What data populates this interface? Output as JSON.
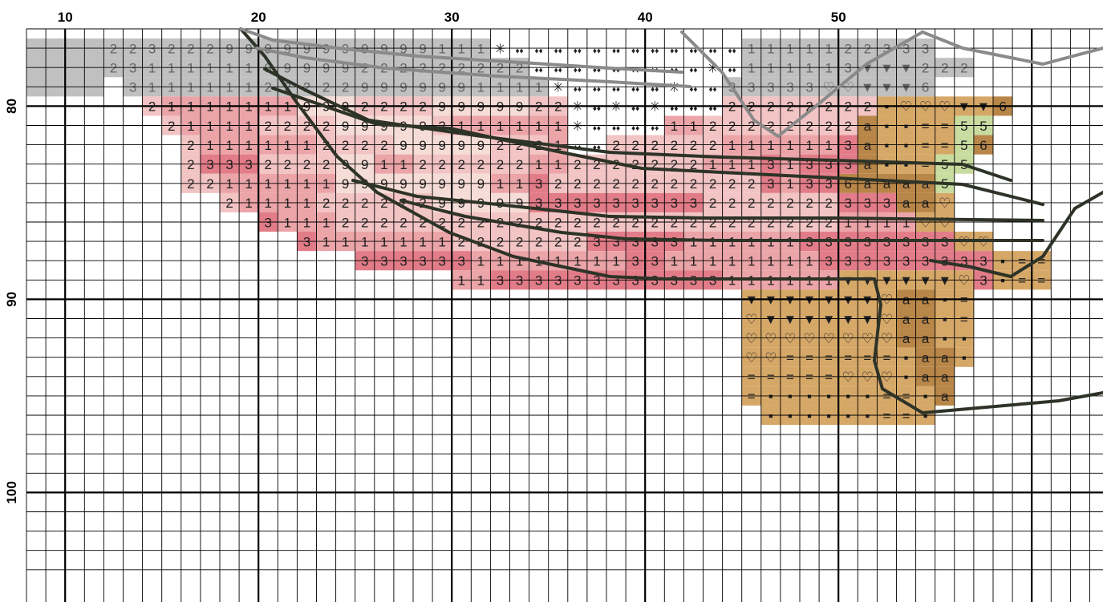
{
  "title": "",
  "col_labels": [
    "10",
    "20",
    "30",
    "40",
    "50"
  ],
  "row_labels": [
    "80",
    "90",
    "100"
  ],
  "grid": {
    "first_col": 0,
    "first_row": 76,
    "row_start": 76.5,
    "cols_drawn": 56,
    "rows_drawn": 26,
    "major_every": 10
  },
  "colors": {
    "gray_shade": "#c0c0c0",
    "gray_outline": "#8a8a8a",
    "pink_light": "#f2c4c4",
    "pink_pale": "#f6dcd6",
    "pink_mid": "#eba4a8",
    "pink_deep": "#e27c88",
    "rose_dark": "#d85c70",
    "tan": "#d6a868",
    "tan_dark": "#b88648",
    "green_light": "#c8dca0",
    "white": "#ffffff",
    "outline": "#2d3327",
    "grid_line": "#000000"
  },
  "legend_symbols": [
    "1",
    "2",
    "3",
    "9",
    "5",
    "6",
    "a",
    "=",
    "✳",
    "♦♦",
    "♡",
    "▼",
    "▪"
  ],
  "stitch_rows": [
    {
      "row": 77,
      "start": 12,
      "cells": [
        "2",
        "2",
        "3",
        "2",
        "2",
        "2",
        "9",
        "9",
        "9",
        "9",
        "9",
        "9",
        "9",
        "9",
        "9",
        "9",
        "9",
        "1",
        "1",
        "1",
        "✳",
        "♦♦",
        "♦♦",
        "♦♦",
        "♦♦",
        "♦♦",
        "♦♦",
        "♦♦",
        "♦♦",
        "♦♦",
        "♦♦",
        "♦♦",
        "♦♦",
        "1",
        "1",
        "1",
        "1",
        "1",
        "2",
        "2",
        "3",
        "3",
        "3"
      ],
      "tone": "gray"
    },
    {
      "row": 78,
      "start": 12,
      "cells": [
        "2",
        "3",
        "1",
        "1",
        "1",
        "1",
        "1",
        "1",
        "9",
        "9",
        "9",
        "9",
        "9",
        "2",
        "2",
        "2",
        "2",
        "2",
        "2",
        "2",
        "2",
        "2",
        "♦♦",
        "♦♦",
        "♦♦",
        "♦♦",
        "♦♦",
        "♦♦",
        "♦♦",
        "♦♦",
        "♦♦",
        "✳",
        "♦♦",
        "1",
        "1",
        "1",
        "1",
        "1",
        "3",
        "▼",
        "▼",
        "▼",
        "2",
        "2",
        "2"
      ],
      "tone": "gray"
    },
    {
      "row": 79,
      "start": 13,
      "cells": [
        "3",
        "1",
        "1",
        "1",
        "1",
        "1",
        "1",
        "2",
        "2",
        "2",
        "2",
        "2",
        "9",
        "9",
        "9",
        "9",
        "9",
        "9",
        "1",
        "1",
        "1",
        "1",
        "✳",
        "♦♦",
        "♦♦",
        "♦♦",
        "♦♦",
        "♦♦",
        "✳",
        "♦♦",
        "♦♦",
        "3",
        "3",
        "3",
        "3",
        "3",
        "♡",
        "♡",
        "▼",
        "▼",
        "▼",
        "6"
      ],
      "tone": "gray"
    },
    {
      "row": 80,
      "start": 14,
      "cells": [
        "2",
        "1",
        "1",
        "1",
        "1",
        "1",
        "1",
        "1",
        "9",
        "9",
        "9",
        "2",
        "2",
        "2",
        "2",
        "9",
        "9",
        "9",
        "9",
        "9",
        "2",
        "2",
        "✳",
        "♦♦",
        "✳",
        "♦♦",
        "✳",
        "♦♦",
        "♦♦",
        "♦♦",
        "2",
        "2",
        "2",
        "2",
        "2",
        "2",
        "2",
        "2",
        "▪",
        "♡",
        "♡",
        "♡",
        "▼",
        "▼",
        "6"
      ],
      "tone": "pink"
    },
    {
      "row": 81,
      "start": 15,
      "cells": [
        "2",
        "1",
        "1",
        "1",
        "1",
        "2",
        "2",
        "2",
        "2",
        "9",
        "9",
        "9",
        "9",
        "9",
        "2",
        "1",
        "1",
        "1",
        "1",
        "1",
        "1",
        "✳",
        "♦♦",
        "♦♦",
        "♦♦",
        "♦♦",
        "1",
        "1",
        "2",
        "2",
        "2",
        "2",
        "2",
        "2",
        "2",
        "2",
        "a",
        "▪",
        "▪",
        "=",
        "=",
        "5",
        "5"
      ],
      "tone": "pink"
    },
    {
      "row": 82,
      "start": 16,
      "cells": [
        "2",
        "1",
        "1",
        "1",
        "1",
        "1",
        "1",
        "2",
        "2",
        "2",
        "2",
        "9",
        "9",
        "9",
        "9",
        "9",
        "2",
        "2",
        "2",
        "1",
        "♦♦",
        "♦♦",
        "2",
        "2",
        "2",
        "2",
        "2",
        "2",
        "1",
        "1",
        "1",
        "1",
        "1",
        "1",
        "3",
        "a",
        "▪",
        "▪",
        "=",
        "=",
        "5",
        "6"
      ],
      "tone": "pink"
    },
    {
      "row": 83,
      "start": 16,
      "cells": [
        "2",
        "3",
        "3",
        "3",
        "2",
        "2",
        "2",
        "2",
        "9",
        "9",
        "1",
        "1",
        "2",
        "2",
        "2",
        "2",
        "2",
        "2",
        "1",
        "1",
        "2",
        "2",
        "2",
        "2",
        "2",
        "2",
        "2",
        "1",
        "1",
        "1",
        "3",
        "1",
        "3",
        "3",
        "3",
        "a",
        "▪",
        "▪",
        "=",
        "5",
        "5"
      ],
      "tone": "pink"
    },
    {
      "row": 84,
      "start": 16,
      "cells": [
        "2",
        "2",
        "1",
        "1",
        "1",
        "1",
        "1",
        "1",
        "9",
        "9",
        "9",
        "9",
        "9",
        "9",
        "9",
        "9",
        "1",
        "1",
        "3",
        "2",
        "2",
        "2",
        "2",
        "2",
        "2",
        "2",
        "2",
        "2",
        "2",
        "2",
        "3",
        "1",
        "3",
        "3",
        "6",
        "a",
        "a",
        "a",
        "a",
        "5"
      ],
      "tone": "pink"
    },
    {
      "row": 85,
      "start": 18,
      "cells": [
        "2",
        "1",
        "1",
        "1",
        "1",
        "2",
        "2",
        "2",
        "2",
        "2",
        "2",
        "9",
        "9",
        "9",
        "9",
        "9",
        "3",
        "3",
        "3",
        "3",
        "3",
        "3",
        "3",
        "3",
        "3",
        "2",
        "2",
        "2",
        "2",
        "2",
        "2",
        "2",
        "3",
        "3",
        "3",
        "a",
        "a",
        "♡"
      ],
      "tone": "pink"
    },
    {
      "row": 86,
      "start": 20,
      "cells": [
        "3",
        "1",
        "1",
        "1",
        "2",
        "2",
        "2",
        "2",
        "2",
        "2",
        "2",
        "2",
        "2",
        "2",
        "2",
        "2",
        "2",
        "2",
        "2",
        "2",
        "2",
        "2",
        "2",
        "2",
        "2",
        "2",
        "2",
        "2",
        "2",
        "2",
        "1",
        "1",
        "1",
        "1",
        "♡",
        "♡"
      ],
      "tone": "pink"
    },
    {
      "row": 87,
      "start": 22,
      "cells": [
        "3",
        "1",
        "1",
        "1",
        "1",
        "1",
        "1",
        "1",
        "2",
        "2",
        "2",
        "2",
        "2",
        "2",
        "2",
        "3",
        "3",
        "3",
        "3",
        "3",
        "1",
        "1",
        "1",
        "1",
        "1",
        "1",
        "3",
        "3",
        "3",
        "3",
        "3",
        "3",
        "3",
        "3",
        "♡",
        "♡"
      ],
      "tone": "pink"
    },
    {
      "row": 88,
      "start": 25,
      "cells": [
        "3",
        "3",
        "3",
        "3",
        "3",
        "3",
        "1",
        "1",
        "1",
        "1",
        "1",
        "1",
        "1",
        "1",
        "3",
        "3",
        "1",
        "1",
        "1",
        "1",
        "1",
        "1",
        "1",
        "1",
        "3",
        "3",
        "3",
        "3",
        "3",
        "3",
        "3",
        "3",
        "3",
        "▪",
        "=",
        "="
      ],
      "tone": "rose"
    },
    {
      "row": 89,
      "start": 30,
      "cells": [
        "1",
        "1",
        "3",
        "3",
        "3",
        "3",
        "3",
        "3",
        "3",
        "3",
        "3",
        "3",
        "3",
        "3",
        "1",
        "1",
        "1",
        "1",
        "1",
        "1",
        "▼",
        "▼",
        "▼",
        "▼",
        "▼",
        "▼",
        "♡",
        "3",
        "▪",
        "=",
        "="
      ],
      "tone": "rose"
    },
    {
      "row": 90,
      "start": 45,
      "cells": [
        "▼",
        "▼",
        "▼",
        "▼",
        "▼",
        "▼",
        "▼",
        "♡",
        "a",
        "a",
        "▪",
        "="
      ],
      "tone": "tan"
    },
    {
      "row": 91,
      "start": 45,
      "cells": [
        "♡",
        "▼",
        "▼",
        "▼",
        "▼",
        "▼",
        "▼",
        "♡",
        "a",
        "a",
        "▪",
        "="
      ],
      "tone": "tan"
    },
    {
      "row": 92,
      "start": 45,
      "cells": [
        "♡",
        "♡",
        "♡",
        "♡",
        "♡",
        "♡",
        "♡",
        "♡",
        "a",
        "a",
        "▪",
        "▪"
      ],
      "tone": "tan"
    },
    {
      "row": 93,
      "start": 45,
      "cells": [
        "♡",
        "♡",
        "=",
        "=",
        "=",
        "=",
        "=",
        "=",
        "▪",
        "a",
        "a",
        "▪"
      ],
      "tone": "tan"
    },
    {
      "row": 94,
      "start": 45,
      "cells": [
        "=",
        "=",
        "=",
        "=",
        "=",
        "♡",
        "♡",
        "♡",
        "▪",
        "a",
        "a"
      ],
      "tone": "tan"
    },
    {
      "row": 95,
      "start": 45,
      "cells": [
        "=",
        "▪",
        "▪",
        "▪",
        "▪",
        "▪",
        "▪",
        "=",
        "=",
        "▪",
        "a"
      ],
      "tone": "tan"
    },
    {
      "row": 96,
      "start": 46,
      "cells": [
        "▪",
        "▪",
        "▪",
        "▪",
        "▪",
        "▪",
        "=",
        "=",
        "▪"
      ],
      "tone": "tan"
    }
  ]
}
